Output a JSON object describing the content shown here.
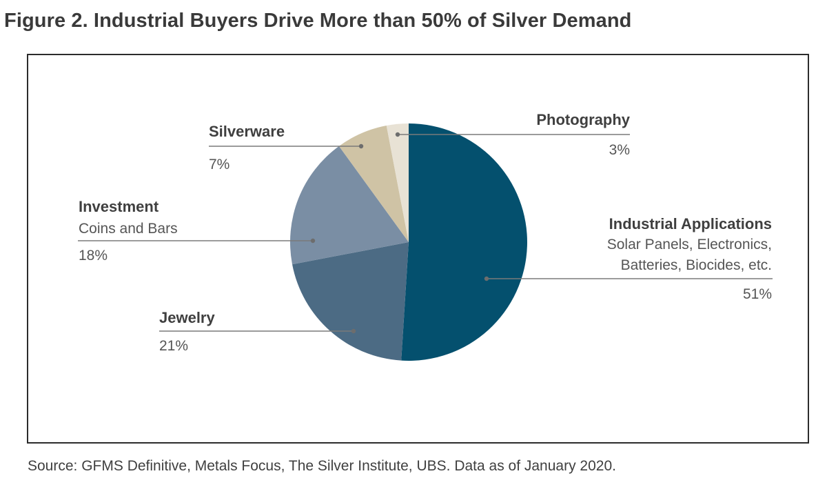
{
  "title": "Figure 2. Industrial Buyers Drive More than 50% of Silver Demand",
  "source": "Source: GFMS Definitive, Metals Focus, The Silver Institute, UBS. Data as of January 2020.",
  "chart_data": {
    "type": "pie",
    "start_angle_deg": 0,
    "direction": "clockwise",
    "legend": "none",
    "slices": [
      {
        "name": "Industrial Applications",
        "description": "Solar Panels, Electronics, Batteries, Biocides, etc.",
        "value": 51,
        "value_label": "51%",
        "color": "#04506e"
      },
      {
        "name": "Jewelry",
        "description": "",
        "value": 21,
        "value_label": "21%",
        "color": "#4c6b84"
      },
      {
        "name": "Investment",
        "description": "Coins and Bars",
        "value": 18,
        "value_label": "18%",
        "color": "#7a8ea4"
      },
      {
        "name": "Silverware",
        "description": "",
        "value": 7,
        "value_label": "7%",
        "color": "#cfc3a5"
      },
      {
        "name": "Photography",
        "description": "",
        "value": 3,
        "value_label": "3%",
        "color": "#e8e2d5"
      }
    ]
  },
  "labels": {
    "industrial": {
      "name": "Industrial Applications",
      "sub1": "Solar Panels, Electronics,",
      "sub2": "Batteries, Biocides, etc.",
      "pct": "51%"
    },
    "jewelry": {
      "name": "Jewelry",
      "pct": "21%"
    },
    "investment": {
      "name": "Investment",
      "sub1": "Coins and Bars",
      "pct": "18%"
    },
    "silverware": {
      "name": "Silverware",
      "pct": "7%"
    },
    "photography": {
      "name": "Photography",
      "pct": "3%"
    }
  }
}
